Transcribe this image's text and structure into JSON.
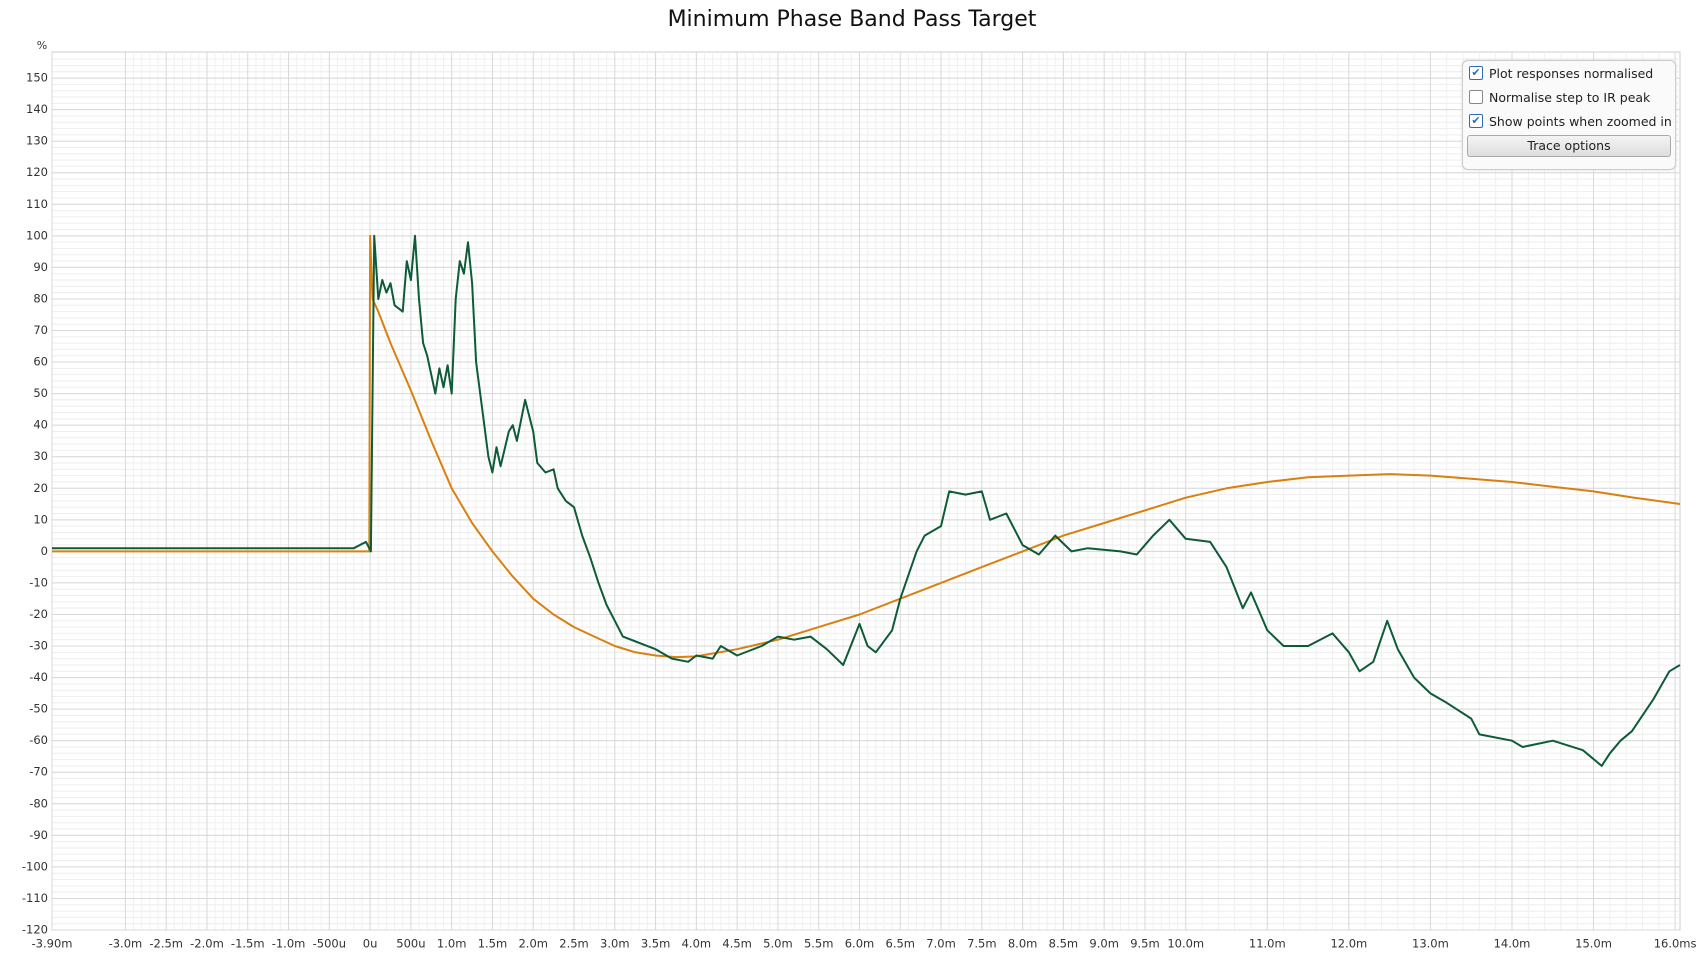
{
  "chart_data": {
    "type": "line",
    "title": "Minimum Phase Band Pass Target",
    "y_unit": "%",
    "xlim": [
      -3.9,
      16.06
    ],
    "ylim": [
      -120,
      157
    ],
    "xticks": [
      {
        "value": -3.9,
        "label": "-3.90m"
      },
      {
        "value": -3.0,
        "label": "-3.0m"
      },
      {
        "value": -2.5,
        "label": "-2.5m"
      },
      {
        "value": -2.0,
        "label": "-2.0m"
      },
      {
        "value": -1.5,
        "label": "-1.5m"
      },
      {
        "value": -1.0,
        "label": "-1.0m"
      },
      {
        "value": -0.5,
        "label": "-500u"
      },
      {
        "value": 0,
        "label": "0u"
      },
      {
        "value": 0.5,
        "label": "500u"
      },
      {
        "value": 1.0,
        "label": "1.0m"
      },
      {
        "value": 1.5,
        "label": "1.5m"
      },
      {
        "value": 2.0,
        "label": "2.0m"
      },
      {
        "value": 2.5,
        "label": "2.5m"
      },
      {
        "value": 3.0,
        "label": "3.0m"
      },
      {
        "value": 3.5,
        "label": "3.5m"
      },
      {
        "value": 4.0,
        "label": "4.0m"
      },
      {
        "value": 4.5,
        "label": "4.5m"
      },
      {
        "value": 5.0,
        "label": "5.0m"
      },
      {
        "value": 5.5,
        "label": "5.5m"
      },
      {
        "value": 6.0,
        "label": "6.0m"
      },
      {
        "value": 6.5,
        "label": "6.5m"
      },
      {
        "value": 7.0,
        "label": "7.0m"
      },
      {
        "value": 7.5,
        "label": "7.5m"
      },
      {
        "value": 8.0,
        "label": "8.0m"
      },
      {
        "value": 8.5,
        "label": "8.5m"
      },
      {
        "value": 9.0,
        "label": "9.0m"
      },
      {
        "value": 9.5,
        "label": "9.5m"
      },
      {
        "value": 10.0,
        "label": "10.0m"
      },
      {
        "value": 11.0,
        "label": "11.0m"
      },
      {
        "value": 12.0,
        "label": "12.0m"
      },
      {
        "value": 13.0,
        "label": "13.0m"
      },
      {
        "value": 14.0,
        "label": "14.0m"
      },
      {
        "value": 15.0,
        "label": "15.0m"
      },
      {
        "value": 16.0,
        "label": "16.0ms"
      }
    ],
    "yticks": [
      -120,
      -110,
      -100,
      -90,
      -80,
      -70,
      -60,
      -50,
      -40,
      -30,
      -20,
      -10,
      0,
      10,
      20,
      30,
      40,
      50,
      60,
      70,
      80,
      90,
      100,
      110,
      120,
      130,
      140,
      150
    ],
    "grid": true,
    "series": [
      {
        "color": "#d9800f",
        "x": [
          -3.9,
          -0.01,
          0,
          0.03,
          0.1,
          0.25,
          0.5,
          0.75,
          1.0,
          1.25,
          1.5,
          1.75,
          2.0,
          2.25,
          2.5,
          2.75,
          3.0,
          3.25,
          3.5,
          3.75,
          4.0,
          4.5,
          5.0,
          5.5,
          6.0,
          6.5,
          7.0,
          7.5,
          8.0,
          8.5,
          9.0,
          9.5,
          10.0,
          10.5,
          11.0,
          11.5,
          12.0,
          12.5,
          13.0,
          13.5,
          14.0,
          14.5,
          15.0,
          15.5,
          16.06
        ],
        "values": [
          0,
          0,
          100,
          80,
          76,
          66,
          51,
          35,
          20,
          9,
          0,
          -8,
          -15,
          -20,
          -24,
          -27,
          -30,
          -32,
          -33,
          -33.5,
          -33.3,
          -31,
          -28,
          -24,
          -20,
          -15,
          -10,
          -5,
          0,
          5,
          9,
          13,
          17,
          20,
          22,
          23.5,
          24,
          24.5,
          24,
          23,
          22,
          20.5,
          19,
          17,
          15
        ]
      },
      {
        "color": "#0d5c37",
        "x": [
          -3.9,
          -2.0,
          -0.5,
          -0.2,
          -0.05,
          0.01,
          0.05,
          0.1,
          0.15,
          0.2,
          0.25,
          0.3,
          0.4,
          0.45,
          0.5,
          0.55,
          0.6,
          0.65,
          0.7,
          0.8,
          0.85,
          0.9,
          0.95,
          1.0,
          1.05,
          1.1,
          1.15,
          1.2,
          1.25,
          1.3,
          1.4,
          1.45,
          1.5,
          1.55,
          1.6,
          1.7,
          1.75,
          1.8,
          1.9,
          2.0,
          2.05,
          2.15,
          2.25,
          2.3,
          2.4,
          2.5,
          2.6,
          2.7,
          2.8,
          2.9,
          3.0,
          3.1,
          3.3,
          3.5,
          3.7,
          3.9,
          4.0,
          4.2,
          4.3,
          4.5,
          4.8,
          5.0,
          5.2,
          5.4,
          5.6,
          5.8,
          6.0,
          6.1,
          6.2,
          6.4,
          6.5,
          6.7,
          6.8,
          7.0,
          7.1,
          7.3,
          7.5,
          7.6,
          7.8,
          8.0,
          8.2,
          8.4,
          8.6,
          8.8,
          9.2,
          9.4,
          9.6,
          9.8,
          10.0,
          10.3,
          10.5,
          10.7,
          10.8,
          11.0,
          11.2,
          11.5,
          11.8,
          12.0,
          12.13,
          12.3,
          12.47,
          12.6,
          12.8,
          13.0,
          13.2,
          13.5,
          13.6,
          14.0,
          14.13,
          14.5,
          14.87,
          15.1,
          15.2,
          15.33,
          15.47,
          15.73,
          15.93,
          16.06
        ],
        "values": [
          1,
          1,
          1,
          1,
          3,
          0,
          100,
          80,
          86,
          82,
          85,
          78,
          76,
          92,
          86,
          100,
          80,
          66,
          62,
          50,
          58,
          52,
          59,
          50,
          80,
          92,
          88,
          98,
          85,
          60,
          40,
          30,
          25,
          33,
          27,
          38,
          40,
          35,
          48,
          38,
          28,
          25,
          26,
          20,
          16,
          14,
          5,
          -2,
          -10,
          -17,
          -22,
          -27,
          -29,
          -31,
          -34,
          -35,
          -33,
          -34,
          -30,
          -33,
          -30,
          -27,
          -28,
          -27,
          -31,
          -36,
          -23,
          -30,
          -32,
          -25,
          -15,
          0,
          5,
          8,
          19,
          18,
          19,
          10,
          12,
          2,
          -1,
          5,
          0,
          1,
          0,
          -1,
          5,
          10,
          4,
          3,
          -5,
          -18,
          -13,
          -25,
          -30,
          -30,
          -26,
          -32,
          -38,
          -35,
          -22,
          -31,
          -40,
          -45,
          -48,
          -53,
          -58,
          -60,
          -62,
          -60,
          -63,
          -68,
          -64,
          -60,
          -57,
          -47,
          -38,
          -36
        ]
      }
    ]
  },
  "options": {
    "checkboxes": [
      {
        "label": "Plot responses normalised",
        "checked": true
      },
      {
        "label": "Normalise step to IR peak",
        "checked": false
      },
      {
        "label": "Show points when zoomed in",
        "checked": true
      }
    ],
    "button": "Trace options"
  }
}
